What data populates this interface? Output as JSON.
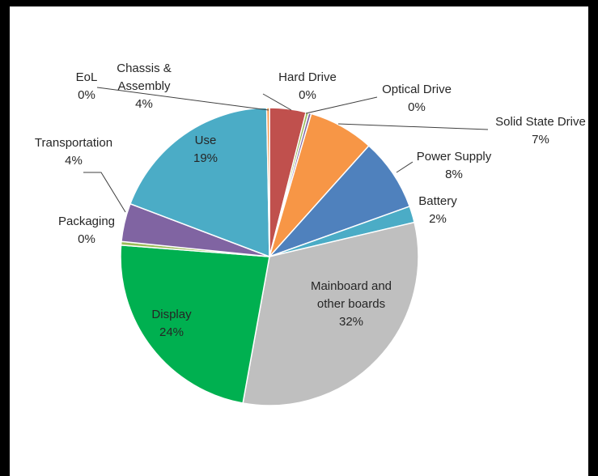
{
  "chart_data": {
    "type": "pie",
    "title": "",
    "slices": [
      {
        "name": "Chassis & Assembly",
        "label_lines": [
          "Chassis &",
          "Assembly"
        ],
        "pct_label": "4%",
        "value": 4,
        "color": "#C0504D"
      },
      {
        "name": "Hard Drive",
        "label_lines": [
          "Hard Drive"
        ],
        "pct_label": "0%",
        "value": 0.3,
        "color": "#9BBB59"
      },
      {
        "name": "Optical Drive",
        "label_lines": [
          "Optical Drive"
        ],
        "pct_label": "0%",
        "value": 0.3,
        "color": "#8064A2"
      },
      {
        "name": "Solid State Drive",
        "label_lines": [
          "Solid State Drive"
        ],
        "pct_label": "7%",
        "value": 7.2,
        "color": "#F79646"
      },
      {
        "name": "Power Supply",
        "label_lines": [
          "Power Supply"
        ],
        "pct_label": "8%",
        "value": 8,
        "color": "#4F81BD"
      },
      {
        "name": "Battery",
        "label_lines": [
          "Battery"
        ],
        "pct_label": "2%",
        "value": 1.8,
        "color": "#4BACC6"
      },
      {
        "name": "Mainboard and other boards",
        "label_lines": [
          "Mainboard and",
          "other boards"
        ],
        "pct_label": "32%",
        "value": 32,
        "color": "#BFBFBF"
      },
      {
        "name": "Display",
        "label_lines": [
          "Display"
        ],
        "pct_label": "24%",
        "value": 23.7,
        "color": "#00B050"
      },
      {
        "name": "Packaging",
        "label_lines": [
          "Packaging"
        ],
        "pct_label": "0%",
        "value": 0.4,
        "color": "#9BBB59"
      },
      {
        "name": "Transportation",
        "label_lines": [
          "Transportation"
        ],
        "pct_label": "4%",
        "value": 4.2,
        "color": "#8064A2"
      },
      {
        "name": "Use",
        "label_lines": [
          "Use"
        ],
        "pct_label": "19%",
        "value": 19.2,
        "color": "#4BACC6"
      },
      {
        "name": "EoL",
        "label_lines": [
          "EoL"
        ],
        "pct_label": "0%",
        "value": 0.3,
        "color": "#F79646"
      }
    ]
  }
}
